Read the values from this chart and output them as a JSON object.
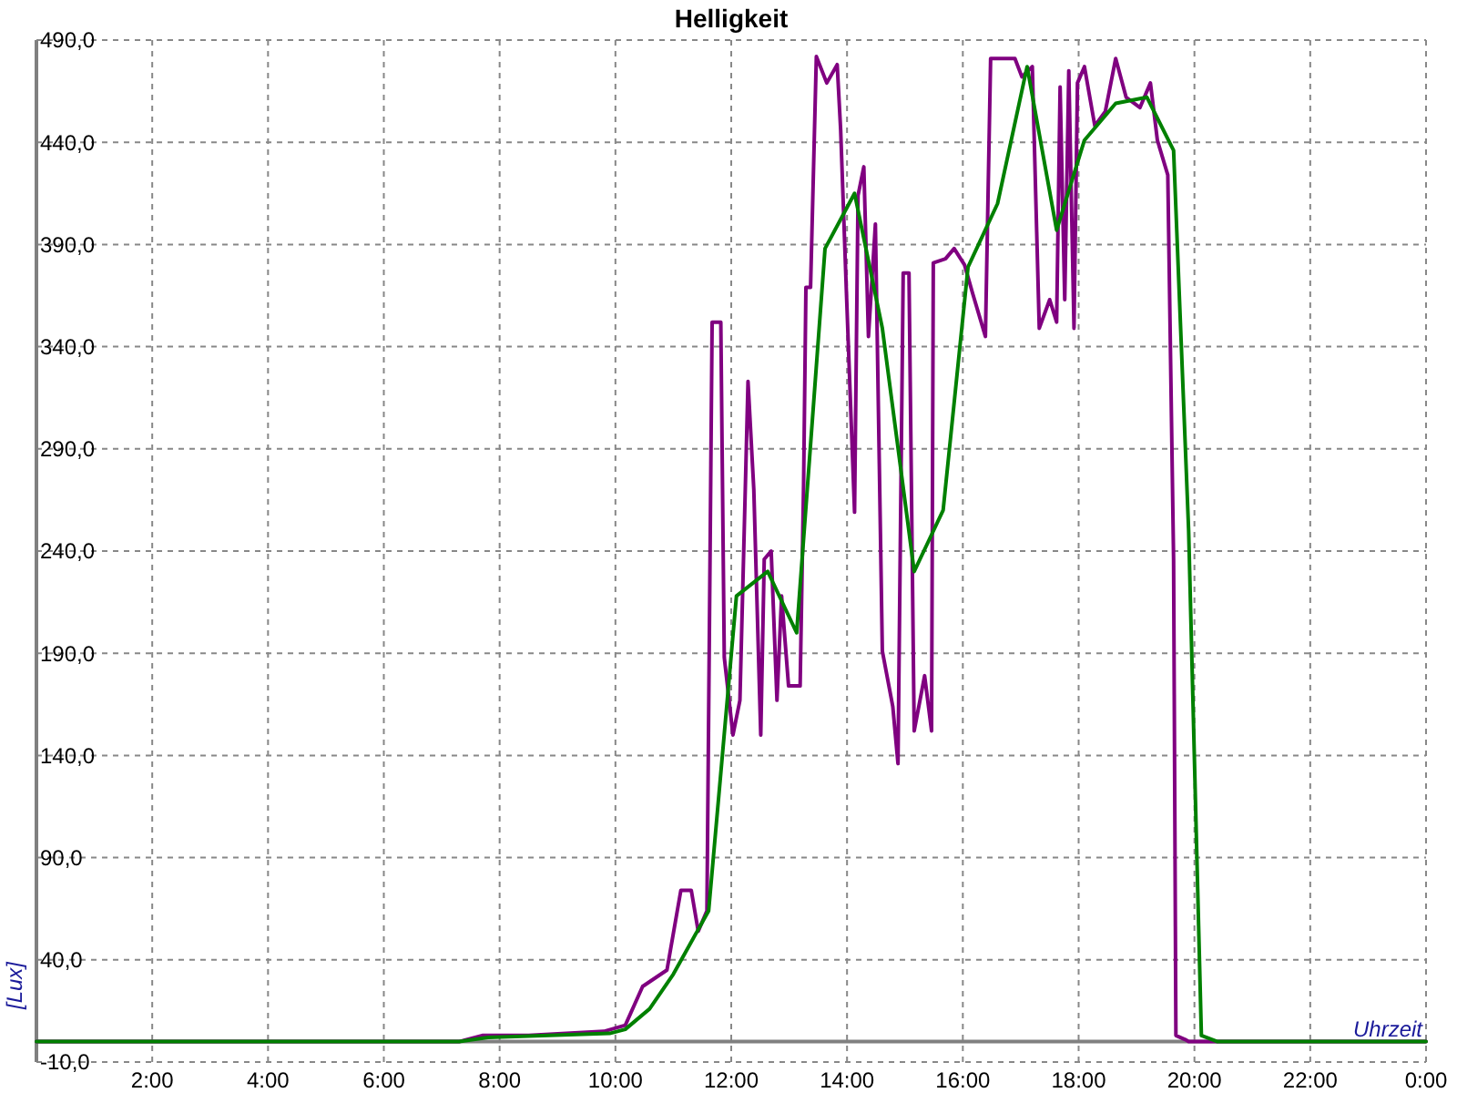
{
  "chart_data": {
    "type": "line",
    "title": "Helligkeit",
    "xlabel": "Uhrzeit",
    "ylabel": "[Lux]",
    "xlim": [
      0,
      24
    ],
    "ylim": [
      -10,
      490
    ],
    "xticks": [
      {
        "value": 0,
        "label": null
      },
      {
        "value": 2,
        "label": "2:00"
      },
      {
        "value": 4,
        "label": "4:00"
      },
      {
        "value": 6,
        "label": "6:00"
      },
      {
        "value": 8,
        "label": "8:00"
      },
      {
        "value": 10,
        "label": "10:00"
      },
      {
        "value": 12,
        "label": "12:00"
      },
      {
        "value": 14,
        "label": "14:00"
      },
      {
        "value": 16,
        "label": "16:00"
      },
      {
        "value": 18,
        "label": "18:00"
      },
      {
        "value": 20,
        "label": "20:00"
      },
      {
        "value": 22,
        "label": "22:00"
      },
      {
        "value": 24,
        "label": "0:00"
      }
    ],
    "yticks": [
      {
        "value": -10,
        "label": "-10,0"
      },
      {
        "value": 40,
        "label": "40,0"
      },
      {
        "value": 90,
        "label": "90,0"
      },
      {
        "value": 140,
        "label": "140,0"
      },
      {
        "value": 190,
        "label": "190,0"
      },
      {
        "value": 240,
        "label": "240,0"
      },
      {
        "value": 290,
        "label": "290,0"
      },
      {
        "value": 340,
        "label": "340,0"
      },
      {
        "value": 390,
        "label": "390,0"
      },
      {
        "value": 440,
        "label": "440,0"
      },
      {
        "value": 490,
        "label": "490,0"
      }
    ],
    "grid": true,
    "ref_lines": [
      {
        "axis": "y",
        "value": 0,
        "color": "#808080"
      }
    ],
    "series": [
      {
        "color": "#800080",
        "x": [
          0,
          7.3,
          7.7,
          8.5,
          9.8,
          10.17,
          10.47,
          10.89,
          11.13,
          11.31,
          11.43,
          11.58,
          11.67,
          11.82,
          11.88,
          12.03,
          12.15,
          12.29,
          12.39,
          12.51,
          12.57,
          12.69,
          12.79,
          12.87,
          12.99,
          13.19,
          13.25,
          13.29,
          13.37,
          13.47,
          13.65,
          13.83,
          13.89,
          13.99,
          14.13,
          14.19,
          14.29,
          14.37,
          14.49,
          14.61,
          14.79,
          14.88,
          14.97,
          15.07,
          15.16,
          15.34,
          15.46,
          15.49,
          15.7,
          15.85,
          16.03,
          16.17,
          16.39,
          16.48,
          16.9,
          17.02,
          17.2,
          17.32,
          17.5,
          17.62,
          17.68,
          17.76,
          17.83,
          17.92,
          17.98,
          18.1,
          18.28,
          18.46,
          18.64,
          18.82,
          19.06,
          19.24,
          19.36,
          19.54,
          19.64,
          19.68,
          19.84,
          19.9,
          24
        ],
        "values": [
          0,
          0,
          3,
          3,
          5,
          8,
          27,
          35,
          74,
          74,
          54,
          64,
          352,
          352,
          188,
          150,
          167,
          323,
          270,
          150,
          236,
          240,
          167,
          218,
          174,
          174,
          273,
          369,
          369,
          482,
          469,
          478,
          446,
          366,
          259,
          414,
          428,
          345,
          400,
          191,
          164,
          136,
          376,
          376,
          152,
          179,
          152,
          381,
          383,
          388,
          380,
          366,
          345,
          481,
          481,
          472,
          477,
          349,
          363,
          352,
          467,
          363,
          475,
          349,
          469,
          477,
          448,
          455,
          481,
          462,
          457,
          469,
          441,
          424,
          236,
          3,
          1,
          0,
          0
        ]
      },
      {
        "color": "#008000",
        "x": [
          0,
          7.3,
          7.8,
          9.9,
          10.17,
          10.59,
          11.0,
          11.61,
          12.09,
          12.63,
          13.13,
          13.62,
          14.13,
          14.61,
          15.16,
          15.66,
          16.09,
          16.6,
          17.11,
          17.62,
          18.1,
          18.64,
          19.18,
          19.64,
          19.9,
          20.12,
          20.4,
          24
        ],
        "values": [
          0,
          0,
          2,
          4,
          6,
          16,
          33,
          64,
          218,
          230,
          200,
          388,
          415,
          349,
          230,
          260,
          379,
          410,
          477,
          397,
          441,
          459,
          462,
          436,
          250,
          3,
          0,
          0
        ]
      }
    ]
  }
}
